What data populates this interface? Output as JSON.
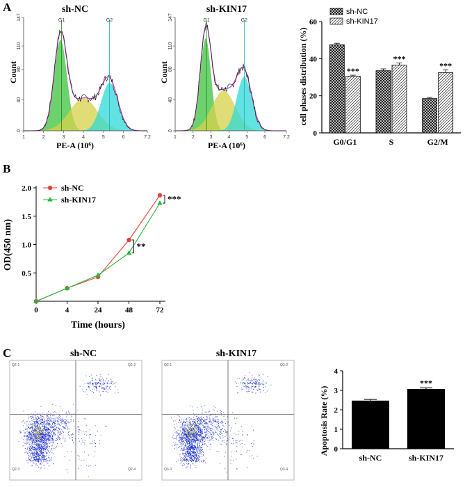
{
  "panels": {
    "a": "A",
    "b": "B",
    "c": "C"
  },
  "chart_data": [
    {
      "type": "histogram",
      "id": "flow-shNC",
      "title": "sh-NC",
      "xlabel": "PE-A (10⁶)",
      "ylabel": "Count",
      "xlim": [
        1,
        7.2
      ],
      "ylim": [
        0,
        147
      ],
      "x_ticks": [
        "1",
        "2",
        "3",
        "4",
        "5",
        "6",
        "7.2"
      ],
      "y_ticks": [
        "0",
        "40",
        "80",
        "110",
        "147"
      ],
      "gate_labels": [
        "G1",
        "G2"
      ],
      "gates": [
        2.9,
        5.3
      ],
      "peaks": {
        "g0g1": {
          "mean": 2.85,
          "sd": 0.32,
          "height": 118
        },
        "s": {
          "mean": 4.0,
          "sd": 0.7,
          "height": 42
        },
        "g2m": {
          "mean": 5.3,
          "sd": 0.42,
          "height": 62
        }
      }
    },
    {
      "type": "histogram",
      "id": "flow-shKIN17",
      "title": "sh-KIN17",
      "xlabel": "PE-A (10⁶)",
      "ylabel": "Count",
      "xlim": [
        1,
        7.2
      ],
      "ylim": [
        0,
        147
      ],
      "x_ticks": [
        "1",
        "2",
        "3",
        "4",
        "5",
        "6",
        "7.2"
      ],
      "y_ticks": [
        "0",
        "40",
        "80",
        "110",
        "147"
      ],
      "gate_labels": [
        "G1",
        "G2"
      ],
      "gates": [
        2.75,
        4.85
      ],
      "peaks": {
        "g0g1": {
          "mean": 2.7,
          "sd": 0.3,
          "height": 120
        },
        "s": {
          "mean": 3.7,
          "sd": 0.65,
          "height": 52
        },
        "g2m": {
          "mean": 4.85,
          "sd": 0.42,
          "height": 70
        }
      }
    },
    {
      "type": "bar",
      "id": "cell-phases",
      "ylabel": "cell phases distribution (%)",
      "categories": [
        "G0/G1",
        "S",
        "G2/M"
      ],
      "ylim": [
        0,
        60
      ],
      "y_ticks": [
        "0",
        "20",
        "40",
        "60"
      ],
      "series": [
        {
          "name": "sh-NC",
          "values": [
            47.5,
            33.5,
            18.5
          ],
          "errors": [
            0.8,
            1.0,
            0.6
          ]
        },
        {
          "name": "sh-KIN17",
          "values": [
            30.5,
            36.5,
            32.5
          ],
          "errors": [
            0.6,
            1.2,
            1.5
          ]
        }
      ],
      "significance": [
        "***",
        "***",
        "***"
      ]
    },
    {
      "type": "line",
      "id": "od-growth",
      "xlabel": "Time (hours)",
      "ylabel": "OD(450 nm)",
      "categories": [
        "0",
        "4",
        "24",
        "48",
        "72"
      ],
      "ylim": [
        0,
        2.0
      ],
      "y_ticks": [
        "0.5",
        "1.0",
        "1.5",
        "2.0"
      ],
      "series": [
        {
          "name": "sh-NC",
          "color": "#e8403a",
          "values": [
            0.0,
            0.23,
            0.43,
            1.08,
            1.87
          ]
        },
        {
          "name": "sh-KIN17",
          "color": "#27b83a",
          "values": [
            0.0,
            0.23,
            0.46,
            0.85,
            1.73
          ]
        }
      ],
      "significance": [
        {
          "at": "48",
          "label": "**"
        },
        {
          "at": "72",
          "label": "***"
        }
      ]
    },
    {
      "type": "scatter",
      "id": "apoptosis-shNC",
      "title": "sh-NC",
      "quadrants": [
        "Q2-1",
        "Q2-2",
        "Q2-3",
        "Q2-4"
      ]
    },
    {
      "type": "scatter",
      "id": "apoptosis-shKIN17",
      "title": "sh-KIN17",
      "quadrants": [
        "Q3-1",
        "Q3-2",
        "Q3-3",
        "Q3-4"
      ]
    },
    {
      "type": "bar",
      "id": "apoptosis-rate",
      "ylabel": "Apoptosis Rate (%)",
      "categories": [
        "sh-NC",
        "sh-KIN17"
      ],
      "ylim": [
        0,
        4
      ],
      "y_ticks": [
        "0",
        "1",
        "2",
        "3",
        "4"
      ],
      "values": [
        2.47,
        3.07
      ],
      "errors": [
        0.06,
        0.05
      ],
      "significance": [
        "",
        "***"
      ]
    }
  ],
  "colors": {
    "g0g1": "#3cc23c",
    "s": "#d6d24a",
    "g2m": "#2fd8d8",
    "fit": "#c03cc0",
    "outline": "#222222",
    "dots": "#1a2fd0",
    "bar": "#000000"
  }
}
